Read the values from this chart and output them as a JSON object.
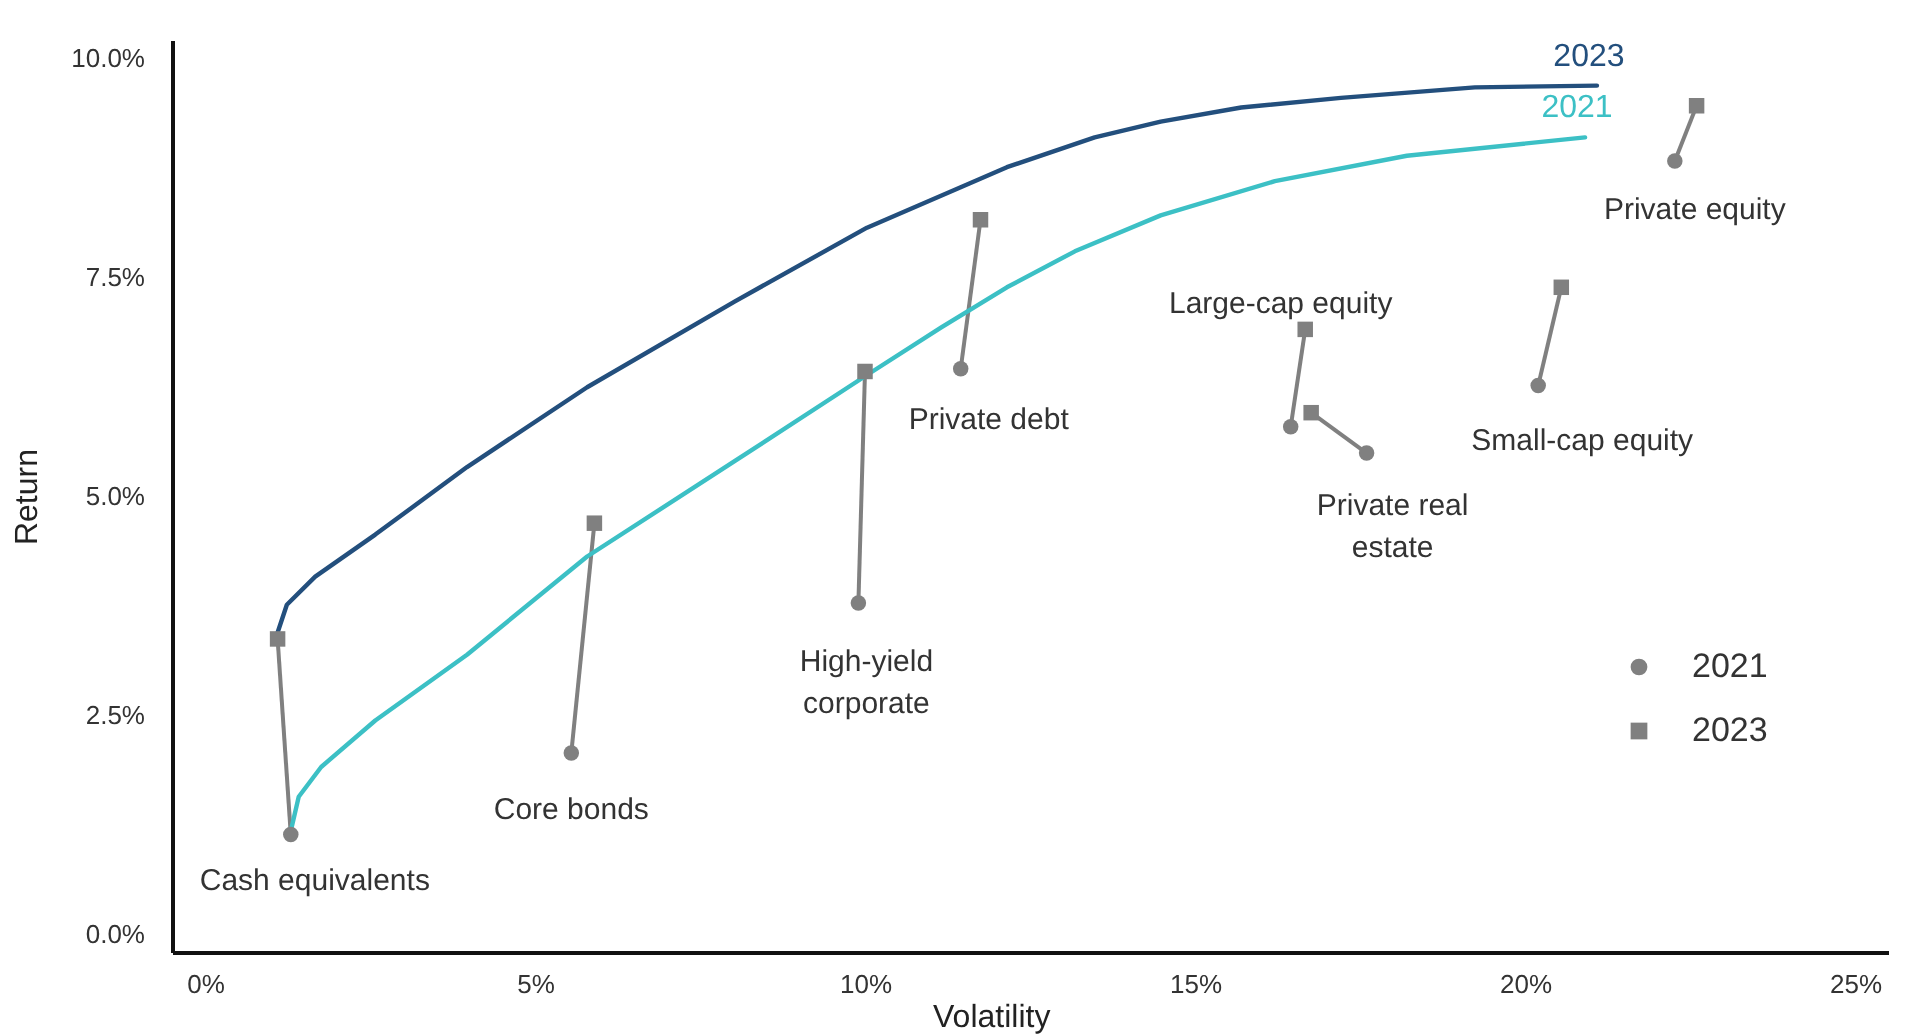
{
  "chart_data": {
    "type": "scatter",
    "xlabel": "Volatility",
    "ylabel": "Return",
    "xlim": [
      -0.5,
      25.5
    ],
    "ylim": [
      -0.2,
      10.2
    ],
    "xticks": [
      {
        "value": 0,
        "label": "0%"
      },
      {
        "value": 5,
        "label": "5%"
      },
      {
        "value": 10,
        "label": "10%"
      },
      {
        "value": 15,
        "label": "15%"
      },
      {
        "value": 20,
        "label": "20%"
      },
      {
        "value": 25,
        "label": "25%"
      }
    ],
    "yticks": [
      {
        "value": 0,
        "label": "0.0%"
      },
      {
        "value": 2.5,
        "label": "2.5%"
      },
      {
        "value": 5,
        "label": "5.0%"
      },
      {
        "value": 7.5,
        "label": "7.5%"
      },
      {
        "value": 10,
        "label": "10.0%"
      }
    ],
    "grid": false,
    "legend": "bottom right",
    "series": [
      {
        "name": "2021",
        "marker": "circle",
        "color": "#808080",
        "x": [
          1.3,
          5.55,
          9.9,
          11.45,
          16.45,
          17.6,
          20.2,
          22.27
        ],
        "values": [
          1.14,
          2.07,
          3.78,
          6.45,
          5.79,
          5.49,
          6.26,
          8.82
        ]
      },
      {
        "name": "2023",
        "marker": "square",
        "color": "#808080",
        "x": [
          1.1,
          5.9,
          10.0,
          11.75,
          16.67,
          16.76,
          20.55,
          22.6
        ],
        "values": [
          3.37,
          4.69,
          6.42,
          8.15,
          6.9,
          5.95,
          7.38,
          9.45
        ]
      },
      {
        "name": "2023",
        "type": "line",
        "color": "#234f7d",
        "x": [
          1.09,
          1.24,
          1.67,
          2.58,
          3.97,
          5.79,
          8.03,
          10.03,
          11.45,
          12.15,
          13.48,
          14.48,
          15.7,
          17.21,
          19.24,
          21.09
        ],
        "values": [
          3.42,
          3.76,
          4.08,
          4.56,
          5.33,
          6.24,
          7.22,
          8.06,
          8.52,
          8.75,
          9.09,
          9.27,
          9.43,
          9.54,
          9.66,
          9.68
        ]
      },
      {
        "name": "2021",
        "type": "line",
        "color": "#3cc0c5",
        "x": [
          1.3,
          1.42,
          1.76,
          2.58,
          3.97,
          5.79,
          8.03,
          10.03,
          11.15,
          12.15,
          13.18,
          14.48,
          16.21,
          18.21,
          20.91
        ],
        "values": [
          1.18,
          1.57,
          1.91,
          2.44,
          3.19,
          4.31,
          5.4,
          6.38,
          6.92,
          7.38,
          7.79,
          8.2,
          8.59,
          8.88,
          9.09
        ]
      }
    ],
    "annotations": [
      {
        "text": "Cash equivalents",
        "x": 1.3,
        "y": 1.14
      },
      {
        "text": "Core bonds",
        "x": 5.55,
        "y": 2.07
      },
      {
        "text": "High-yield\ncorporate",
        "x": 9.9,
        "y": 3.78
      },
      {
        "text": "Private debt",
        "x": 11.45,
        "y": 6.45
      },
      {
        "text": "Large-cap equity",
        "x": 16.45,
        "y": 5.79
      },
      {
        "text": "Private real\nestate",
        "x": 17.6,
        "y": 5.49
      },
      {
        "text": "Small-cap equity",
        "x": 20.2,
        "y": 6.26
      },
      {
        "text": "Private equity",
        "x": 22.27,
        "y": 8.82
      }
    ]
  }
}
